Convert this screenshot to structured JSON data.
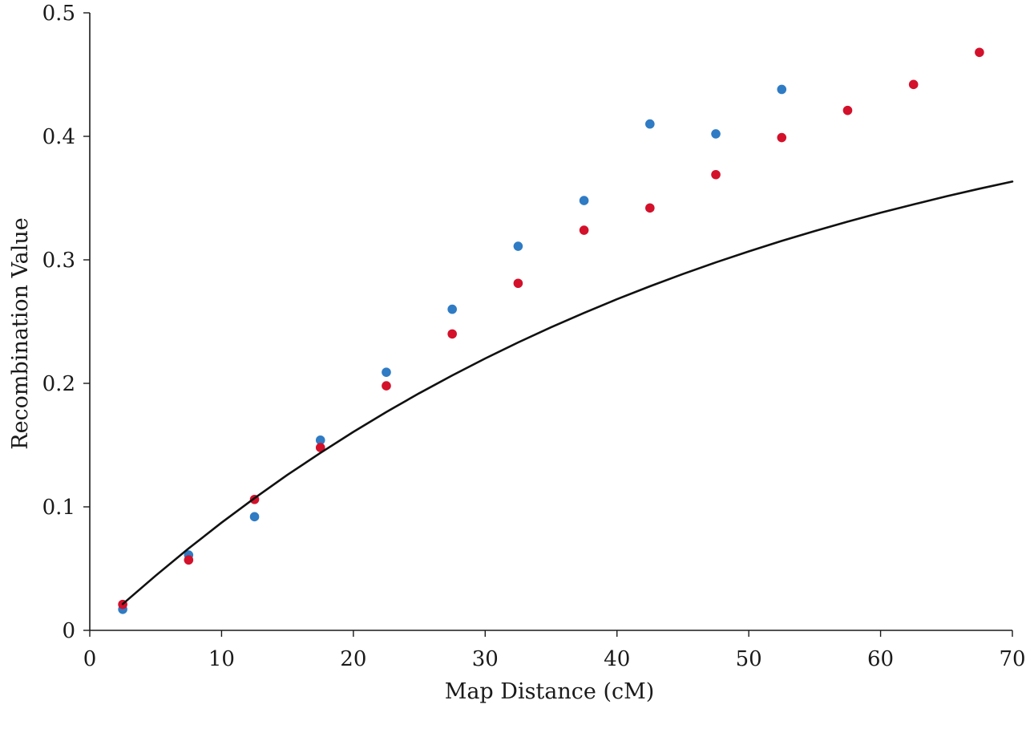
{
  "chart_data": {
    "type": "scatter",
    "xlabel": "Map Distance (cM)",
    "ylabel": "Recombination Value",
    "xlim": [
      0,
      70
    ],
    "ylim": [
      0,
      0.5
    ],
    "xticks": [
      0,
      10,
      20,
      30,
      40,
      50,
      60,
      70
    ],
    "yticks": [
      0,
      0.1,
      0.2,
      0.3,
      0.4,
      0.5
    ],
    "ytick_labels": [
      "0",
      "0.1",
      "0.2",
      "0.3",
      "0.4",
      "0.5"
    ],
    "grid": false,
    "legend": "none",
    "series": [
      {
        "color": "#2f7bc4",
        "marker": "circle",
        "x": [
          2.5,
          7.5,
          12.5,
          17.5,
          22.5,
          27.5,
          32.5,
          37.5,
          42.5,
          47.5,
          52.5
        ],
        "y": [
          0.017,
          0.061,
          0.092,
          0.154,
          0.209,
          0.26,
          0.311,
          0.348,
          0.41,
          0.402,
          0.438
        ]
      },
      {
        "color": "#d3112b",
        "marker": "circle",
        "x": [
          2.5,
          7.5,
          12.5,
          17.5,
          22.5,
          27.5,
          32.5,
          37.5,
          42.5,
          47.5,
          52.5,
          57.5,
          62.5,
          67.5
        ],
        "y": [
          0.021,
          0.057,
          0.106,
          0.148,
          0.198,
          0.24,
          0.281,
          0.324,
          0.342,
          0.369,
          0.399,
          0.421,
          0.442,
          0.468
        ]
      },
      {
        "type": "line",
        "color": "#111111",
        "x": [
          2.5,
          5,
          7.5,
          10,
          12.5,
          15,
          17.5,
          20,
          22.5,
          25,
          27.5,
          30,
          32.5,
          35,
          37.5,
          40,
          42.5,
          45,
          47.5,
          50,
          52.5,
          55,
          57.5,
          60,
          62.5,
          65,
          67.5,
          70
        ],
        "y": [
          0.0213,
          0.0443,
          0.0663,
          0.0872,
          0.107,
          0.1259,
          0.1437,
          0.1607,
          0.1768,
          0.192,
          0.2064,
          0.2201,
          0.2331,
          0.2454,
          0.257,
          0.2681,
          0.2786,
          0.2885,
          0.2979,
          0.3068,
          0.3153,
          0.3233,
          0.3309,
          0.3381,
          0.3449,
          0.3514,
          0.3576,
          0.3634
        ]
      }
    ]
  }
}
